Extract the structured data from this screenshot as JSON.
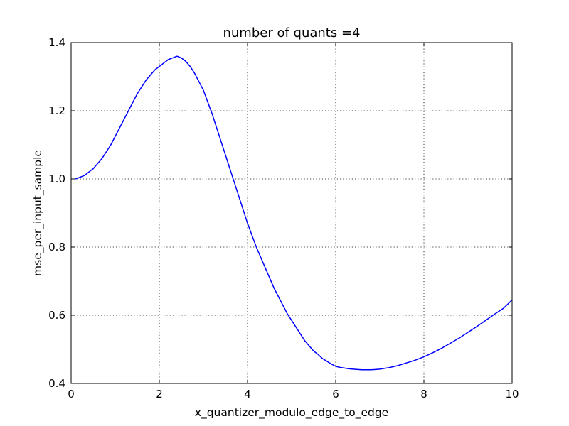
{
  "chart_data": {
    "type": "line",
    "title": "number of quants =4",
    "xlabel": "x_quantizer_modulo_edge_to_edge",
    "ylabel": "mse_per_input_sample",
    "xlim": [
      0,
      10
    ],
    "ylim": [
      0.4,
      1.4
    ],
    "x_ticks": [
      0,
      2,
      4,
      6,
      8,
      10
    ],
    "x_tick_labels": [
      "0",
      "2",
      "4",
      "6",
      "8",
      "10"
    ],
    "y_ticks": [
      0.4,
      0.6,
      0.8,
      1.0,
      1.2,
      1.4
    ],
    "y_tick_labels": [
      "0.4",
      "0.6",
      "0.8",
      "1.0",
      "1.2",
      "1.4"
    ],
    "grid": true,
    "line_color": "#0000ff",
    "series": [
      {
        "x": [
          0.1,
          0.3,
          0.5,
          0.7,
          0.9,
          1.1,
          1.3,
          1.5,
          1.7,
          1.9,
          2.1,
          2.2,
          2.3,
          2.4,
          2.5,
          2.6,
          2.7,
          2.8,
          2.9,
          3.0,
          3.1,
          3.2,
          3.3,
          3.4,
          3.5,
          3.6,
          3.7,
          3.8,
          3.9,
          4.0,
          4.1,
          4.2,
          4.3,
          4.4,
          4.5,
          4.6,
          4.7,
          4.8,
          4.9,
          5.0,
          5.1,
          5.2,
          5.3,
          5.4,
          5.5,
          5.6,
          5.7,
          5.8,
          5.9,
          6.0,
          6.1,
          6.2,
          6.3,
          6.4,
          6.5,
          6.6,
          6.7,
          6.8,
          6.9,
          7.0,
          7.1,
          7.2,
          7.3,
          7.4,
          7.5,
          7.6,
          7.7,
          7.8,
          7.9,
          8.0,
          8.2,
          8.4,
          8.6,
          8.8,
          9.0,
          9.2,
          9.4,
          9.6,
          9.8,
          10.0
        ],
        "y": [
          1.0,
          1.01,
          1.03,
          1.06,
          1.1,
          1.15,
          1.2,
          1.25,
          1.29,
          1.32,
          1.34,
          1.35,
          1.355,
          1.36,
          1.355,
          1.345,
          1.33,
          1.31,
          1.285,
          1.26,
          1.225,
          1.19,
          1.15,
          1.11,
          1.07,
          1.03,
          0.99,
          0.95,
          0.91,
          0.87,
          0.835,
          0.8,
          0.77,
          0.74,
          0.71,
          0.68,
          0.655,
          0.63,
          0.605,
          0.585,
          0.565,
          0.545,
          0.525,
          0.51,
          0.495,
          0.485,
          0.473,
          0.465,
          0.457,
          0.45,
          0.447,
          0.445,
          0.443,
          0.442,
          0.441,
          0.44,
          0.44,
          0.44,
          0.441,
          0.442,
          0.444,
          0.446,
          0.449,
          0.452,
          0.456,
          0.46,
          0.464,
          0.468,
          0.473,
          0.478,
          0.49,
          0.503,
          0.518,
          0.533,
          0.55,
          0.567,
          0.585,
          0.603,
          0.62,
          0.645
        ]
      }
    ]
  }
}
